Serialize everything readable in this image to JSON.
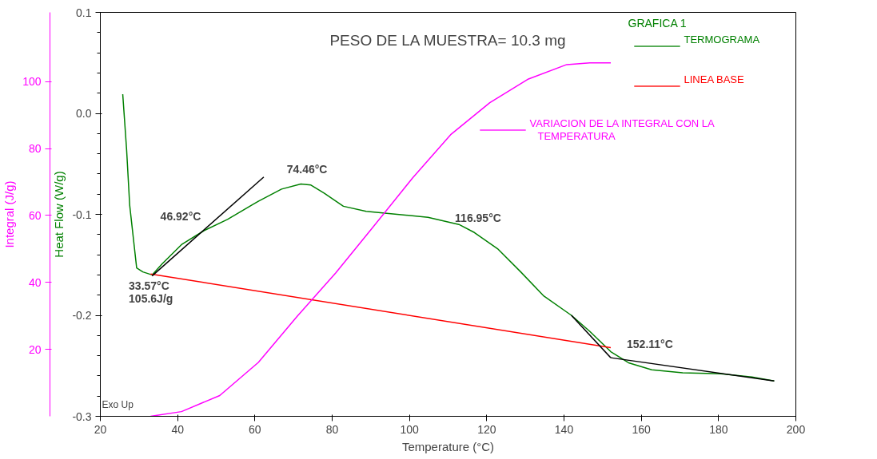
{
  "chart_data": {
    "type": "line",
    "title": "PESO DE LA MUESTRA= 10.3 mg",
    "xlabel": "Temperature (°C)",
    "ylabel": "Heat Flow (W/g)",
    "y2label": "Integral (J/g)",
    "legend_title": "GRAFICA 1",
    "legend": "top right",
    "grid": false,
    "marker": "none",
    "line_style": "solid",
    "xlim": [
      20,
      200
    ],
    "xticks": [
      20,
      40,
      60,
      80,
      100,
      120,
      140,
      160,
      180,
      200
    ],
    "ylim": [
      -0.3,
      0.1
    ],
    "yticks": [
      -0.3,
      -0.2,
      -0.1,
      {
        "value": 0,
        "label": "0.0"
      },
      0.1
    ],
    "y2lim": [
      0,
      120.7
    ],
    "y2ticks": [
      20,
      40,
      60,
      80,
      100
    ],
    "series": [
      {
        "name": "TERMOGRAMA",
        "color": "#008000",
        "x": [
          25.8,
          26.8,
          27.6,
          29.4,
          31.0,
          33.4,
          36.0,
          41.0,
          46.9,
          52.9,
          60.9,
          66.9,
          71.9,
          74.5,
          77.9,
          82.9,
          88.8,
          96.8,
          104.8,
          112.8,
          116.8,
          122.8,
          128.8,
          134.8,
          141.9,
          146.7,
          152.1,
          156.7,
          162.7,
          170.7,
          180.6,
          188.6,
          194.4
        ],
        "values": [
          0.019,
          -0.036,
          -0.091,
          -0.153,
          -0.157,
          -0.16,
          -0.149,
          -0.13,
          -0.116,
          -0.105,
          -0.087,
          -0.075,
          -0.07,
          -0.071,
          -0.079,
          -0.092,
          -0.097,
          -0.1,
          -0.103,
          -0.11,
          -0.118,
          -0.134,
          -0.157,
          -0.181,
          -0.2,
          -0.216,
          -0.236,
          -0.247,
          -0.254,
          -0.257,
          -0.258,
          -0.261,
          -0.265
        ]
      },
      {
        "name": "LINEA BASE",
        "color": "#ff0000",
        "x": [
          33.0,
          152.1
        ],
        "values": [
          -0.159,
          -0.232
        ]
      },
      {
        "name": "VARIACION DE LA INTEGRAL CON LA TEMPERATURA",
        "color": "#ff00ff",
        "axis": "y2",
        "x": [
          33.0,
          41.0,
          50.9,
          60.9,
          70.9,
          80.9,
          90.9,
          100.8,
          110.8,
          120.8,
          130.8,
          140.7,
          146.7,
          152.1
        ],
        "values": [
          0,
          1.4,
          6.2,
          16.1,
          29.8,
          42.8,
          57.0,
          71.2,
          84.3,
          93.7,
          100.8,
          105.1,
          105.6,
          105.6
        ]
      },
      {
        "color": "#000000",
        "x": [
          33.4,
          62.3
        ],
        "values": [
          -0.161,
          -0.063
        ]
      },
      {
        "color": "#000000",
        "x": [
          141.9,
          152.1
        ],
        "values": [
          -0.2,
          -0.242
        ]
      },
      {
        "color": "#000000",
        "x": [
          152.1,
          194.4
        ],
        "values": [
          -0.242,
          -0.265
        ]
      }
    ],
    "annotations": [
      {
        "text": "74.46°C",
        "x": 74.46,
        "y": -0.071
      },
      {
        "text": "46.92°C",
        "x": 46.92,
        "y": -0.116
      },
      {
        "text": "116.95°C",
        "x": 116.95,
        "y": -0.118
      },
      {
        "text": "152.11°C",
        "x": 152.11,
        "y": -0.236
      },
      {
        "text": "33.57°C",
        "x": 33.57,
        "y": -0.16
      },
      {
        "text": "105.6J/g",
        "x": 33.57,
        "y": -0.16
      },
      "Exo Up"
    ]
  }
}
